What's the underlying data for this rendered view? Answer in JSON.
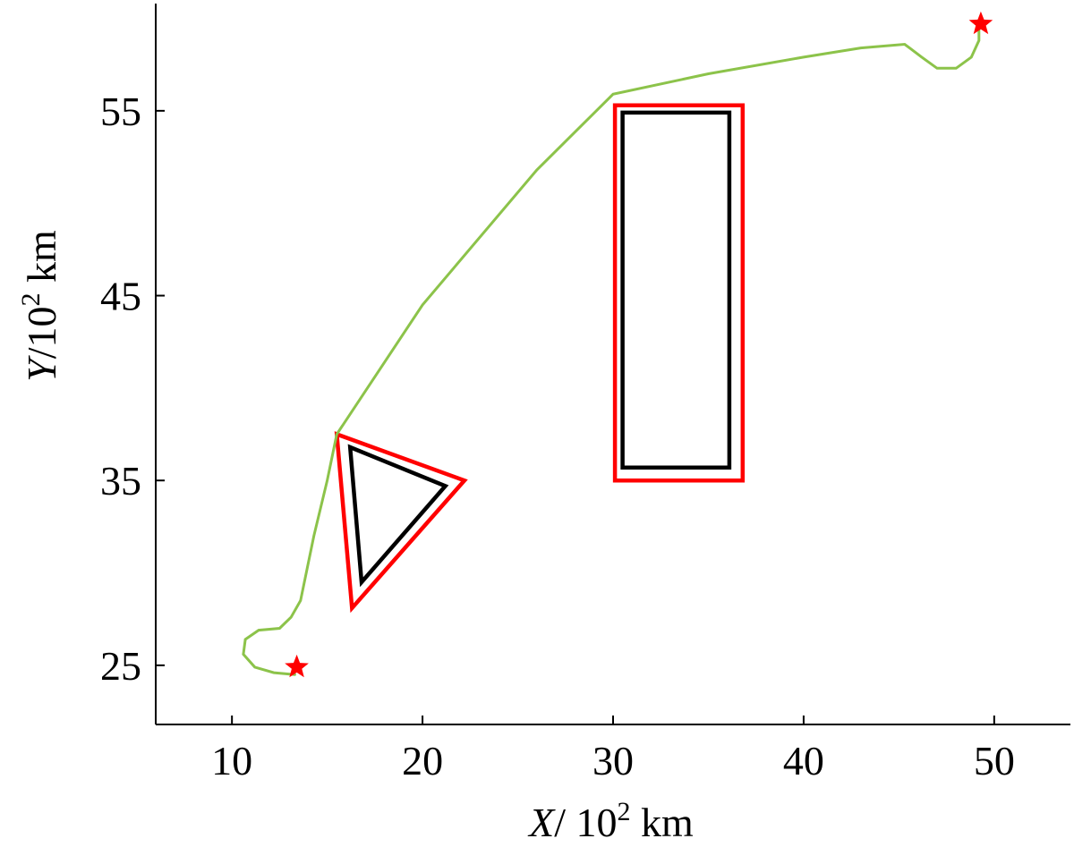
{
  "chart_data": {
    "type": "line",
    "title": "",
    "xlabel": {
      "var": "X",
      "unit_base": "/ 10",
      "unit_exp": "2",
      "unit": " km"
    },
    "ylabel": {
      "var": "Y",
      "unit_base": "/10",
      "unit_exp": "2",
      "unit": " km"
    },
    "xlim": [
      6,
      54
    ],
    "ylim": [
      21.8,
      60.8
    ],
    "xticks": [
      10,
      20,
      30,
      40,
      50
    ],
    "yticks": [
      25,
      35,
      45,
      55
    ],
    "grid": false,
    "series": [
      {
        "kind": "trajectory",
        "color": "#8cc34a",
        "points": [
          [
            13.3,
            24.5
          ],
          [
            12.2,
            24.6
          ],
          [
            11.2,
            24.9
          ],
          [
            10.6,
            25.6
          ],
          [
            10.7,
            26.4
          ],
          [
            11.4,
            26.9
          ],
          [
            12.5,
            27.0
          ],
          [
            13.1,
            27.6
          ],
          [
            13.6,
            28.5
          ],
          [
            14.3,
            32.0
          ],
          [
            15.0,
            35.0
          ],
          [
            15.5,
            37.5
          ],
          [
            20.0,
            44.5
          ],
          [
            26.0,
            51.8
          ],
          [
            30.0,
            55.9
          ],
          [
            35.0,
            57.0
          ],
          [
            40.0,
            57.9
          ],
          [
            43.0,
            58.4
          ],
          [
            45.3,
            58.6
          ],
          [
            46.2,
            57.9
          ],
          [
            47.0,
            57.3
          ],
          [
            48.0,
            57.3
          ],
          [
            48.8,
            57.9
          ],
          [
            49.2,
            58.8
          ],
          [
            49.2,
            59.6
          ]
        ]
      },
      {
        "kind": "obstacle-boundary",
        "color": "#ff0000",
        "closed": true,
        "points": [
          [
            15.5,
            37.5
          ],
          [
            22.2,
            35.0
          ],
          [
            16.3,
            28.1
          ]
        ]
      },
      {
        "kind": "obstacle",
        "color": "#000000",
        "closed": true,
        "points": [
          [
            16.2,
            36.8
          ],
          [
            21.2,
            34.7
          ],
          [
            16.8,
            29.5
          ]
        ]
      },
      {
        "kind": "obstacle-boundary",
        "color": "#ff0000",
        "closed": true,
        "points": [
          [
            30.1,
            35.0
          ],
          [
            36.8,
            35.0
          ],
          [
            36.8,
            55.3
          ],
          [
            30.1,
            55.3
          ]
        ]
      },
      {
        "kind": "obstacle",
        "color": "#000000",
        "closed": true,
        "points": [
          [
            30.5,
            35.7
          ],
          [
            36.1,
            35.7
          ],
          [
            36.1,
            54.9
          ],
          [
            30.5,
            54.9
          ]
        ]
      }
    ],
    "markers": [
      {
        "kind": "star",
        "color": "#ff0000",
        "x": 13.4,
        "y": 24.9
      },
      {
        "kind": "star",
        "color": "#ff0000",
        "x": 49.3,
        "y": 59.7
      }
    ]
  }
}
